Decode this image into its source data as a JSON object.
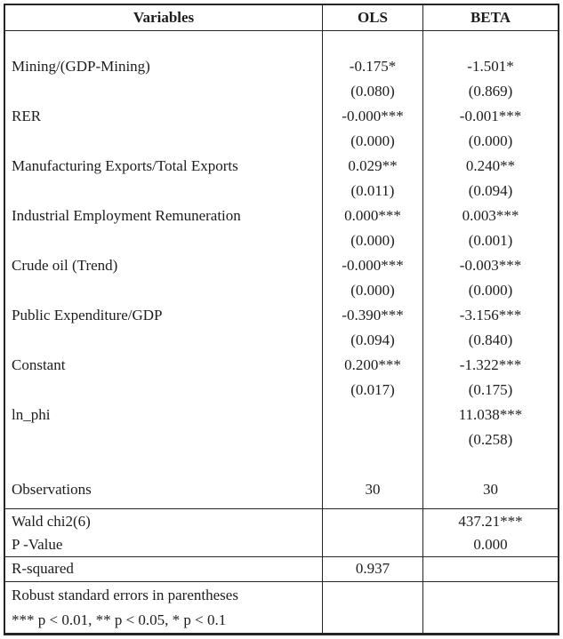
{
  "table": {
    "header": {
      "variables": "Variables",
      "ols": "OLS",
      "beta": "BETA"
    },
    "body_rows": [
      {
        "variable": "Mining/(GDP-Mining)",
        "ols": "-0.175*",
        "beta": "-1.501*"
      },
      {
        "variable": "",
        "ols": "(0.080)",
        "beta": "(0.869)"
      },
      {
        "variable": "RER",
        "ols": "-0.000***",
        "beta": "-0.001***"
      },
      {
        "variable": "",
        "ols": "(0.000)",
        "beta": "(0.000)"
      },
      {
        "variable": "Manufacturing Exports/Total Exports",
        "ols": "0.029**",
        "beta": "0.240**"
      },
      {
        "variable": "",
        "ols": "(0.011)",
        "beta": "(0.094)"
      },
      {
        "variable": "Industrial Employment Remuneration",
        "ols": "0.000***",
        "beta": "0.003***"
      },
      {
        "variable": "",
        "ols": "(0.000)",
        "beta": "(0.001)"
      },
      {
        "variable": "Crude oil (Trend)",
        "ols": "-0.000***",
        "beta": "-0.003***"
      },
      {
        "variable": "",
        "ols": "(0.000)",
        "beta": "(0.000)"
      },
      {
        "variable": "Public Expenditure/GDP",
        "ols": "-0.390***",
        "beta": "-3.156***"
      },
      {
        "variable": "",
        "ols": "(0.094)",
        "beta": "(0.840)"
      },
      {
        "variable": "Constant",
        "ols": "0.200***",
        "beta": "-1.322***"
      },
      {
        "variable": "",
        "ols": "(0.017)",
        "beta": "(0.175)"
      },
      {
        "variable": "ln_phi",
        "ols": "",
        "beta": "11.038***"
      },
      {
        "variable": "",
        "ols": "",
        "beta": "(0.258)"
      },
      {
        "variable": "",
        "ols": "",
        "beta": ""
      },
      {
        "variable": "Observations",
        "ols": "30",
        "beta": "30"
      }
    ],
    "stats_rows": [
      {
        "label": "Wald chi2(6)",
        "ols": "",
        "beta": "437.21***"
      },
      {
        "label": "P -Value",
        "ols": "",
        "beta": "0.000"
      }
    ],
    "r_squared_row": {
      "label": "R-squared",
      "ols": "0.937",
      "beta": ""
    },
    "notes": [
      "Robust standard errors in parentheses",
      "*** p < 0.01, ** p < 0.05, * p < 0.1"
    ]
  },
  "colors": {
    "border": "#272424",
    "text": "#1e1c1c",
    "background": "#ffffff"
  }
}
